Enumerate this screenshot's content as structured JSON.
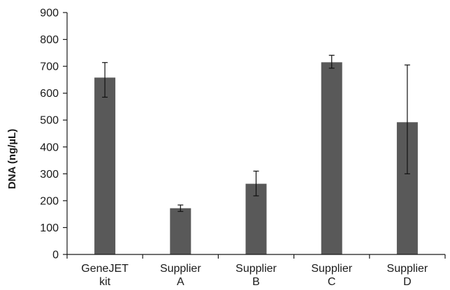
{
  "chart_data": {
    "type": "bar",
    "title": "",
    "xlabel": "",
    "ylabel": "DNA (ng/µL)",
    "ylim": [
      0,
      900
    ],
    "yticks": [
      0,
      100,
      200,
      300,
      400,
      500,
      600,
      700,
      800,
      900
    ],
    "grid": false,
    "legend": "none",
    "categories": [
      [
        "GeneJET",
        "kit"
      ],
      [
        "Supplier",
        "A"
      ],
      [
        "Supplier",
        "B"
      ],
      [
        "Supplier",
        "C"
      ],
      [
        "Supplier",
        "D"
      ]
    ],
    "series": [
      {
        "values": [
          658,
          172,
          263,
          715,
          492
        ],
        "error_low": [
          585,
          160,
          218,
          693,
          300
        ],
        "error_high": [
          714,
          184,
          310,
          741,
          705
        ],
        "color": "#595959"
      }
    ]
  }
}
